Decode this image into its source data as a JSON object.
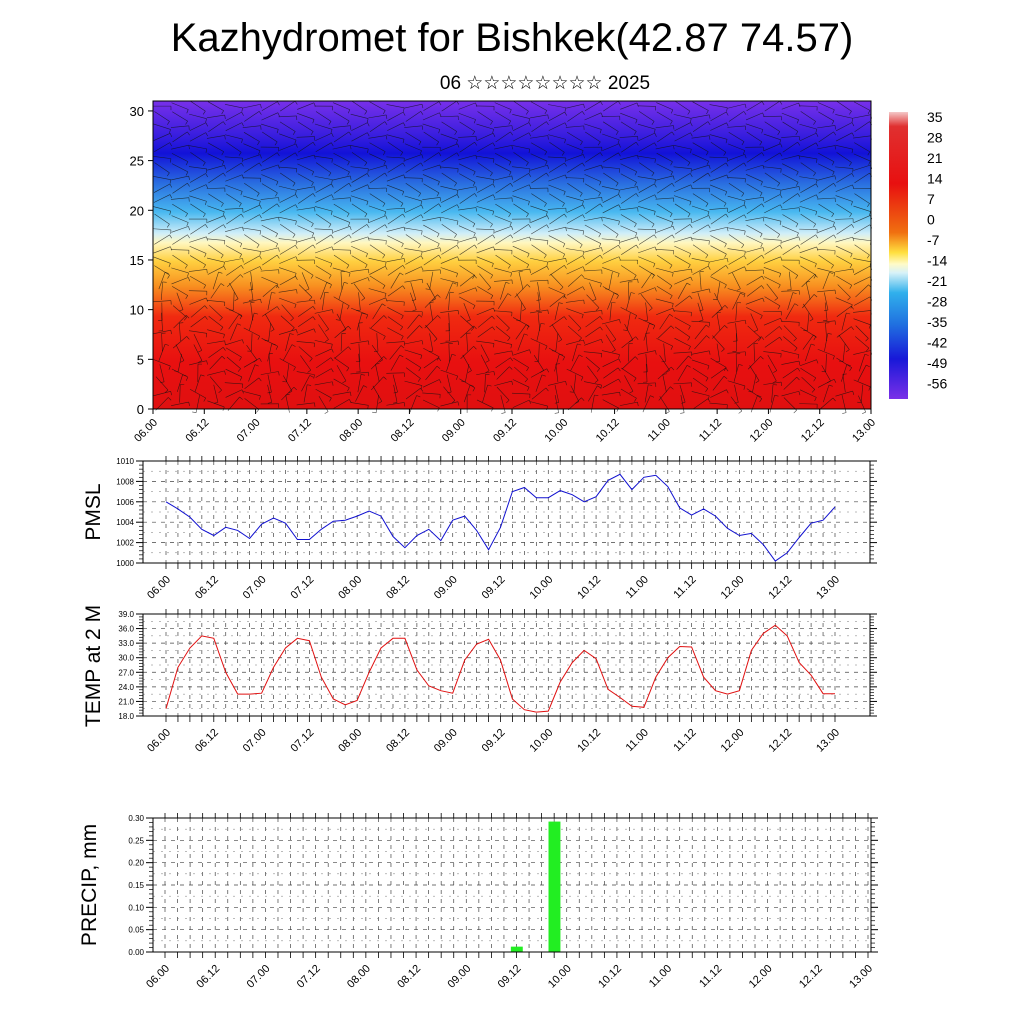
{
  "header": {
    "title": "Kazhydromet for Bishkek(42.87 74.57)",
    "subtitle": "06 ☆☆☆☆☆☆☆☆ 2025"
  },
  "chart_data": [
    {
      "type": "heatmap",
      "title": "",
      "x_ticks": [
        "06.00",
        "06.12",
        "07.00",
        "07.12",
        "08.00",
        "08.12",
        "09.00",
        "09.12",
        "10.00",
        "10.12",
        "11.00",
        "11.12",
        "12.00",
        "12.12",
        "13.00"
      ],
      "y_ticks": [
        0,
        5,
        10,
        15,
        20,
        25,
        30
      ],
      "ylim": [
        0,
        31
      ],
      "colorbar": {
        "labels": [
          35,
          28,
          21,
          14,
          7,
          0,
          -7,
          -14,
          -21,
          -28,
          -35,
          -42,
          -49,
          -56
        ],
        "range": [
          -60,
          38
        ]
      },
      "wind_barbs": true,
      "grid": false
    },
    {
      "type": "line",
      "ylabel": "PMSL",
      "color": "#1010d0",
      "x_ticks": [
        "06.00",
        "06.12",
        "07.00",
        "07.12",
        "08.00",
        "08.12",
        "09.00",
        "09.12",
        "10.00",
        "10.12",
        "11.00",
        "11.12",
        "12.00",
        "12.12",
        "13.00"
      ],
      "y_ticks": [
        1000,
        1002,
        1004,
        1006,
        1008,
        1010
      ],
      "ylim": [
        1000,
        1010
      ],
      "x_step_hours": 3,
      "values": [
        1006.0,
        1005.3,
        1004.5,
        1003.3,
        1002.7,
        1003.5,
        1003.2,
        1002.4,
        1003.8,
        1004.4,
        1003.9,
        1002.3,
        1002.3,
        1003.3,
        1004.1,
        1004.2,
        1004.6,
        1005.1,
        1004.6,
        1002.6,
        1001.5,
        1002.7,
        1003.3,
        1002.2,
        1004.2,
        1004.6,
        1003.2,
        1001.3,
        1003.5,
        1007.0,
        1007.4,
        1006.4,
        1006.4,
        1007.1,
        1006.7,
        1006.0,
        1006.5,
        1008.1,
        1008.7,
        1007.2,
        1008.4,
        1008.6,
        1007.5,
        1005.4,
        1004.7,
        1005.3,
        1004.6,
        1003.4,
        1002.7,
        1002.9,
        1001.8,
        1000.2,
        1001.0,
        1002.5,
        1003.9,
        1004.2,
        1005.5
      ],
      "grid": true
    },
    {
      "type": "line",
      "ylabel": "TEMP at 2 M",
      "color": "#e01010",
      "x_ticks": [
        "06.00",
        "06.12",
        "07.00",
        "07.12",
        "08.00",
        "08.12",
        "09.00",
        "09.12",
        "10.00",
        "10.12",
        "11.00",
        "11.12",
        "12.00",
        "12.12",
        "13.00"
      ],
      "y_ticks": [
        "18.0",
        "21.0",
        "24.0",
        "27.0",
        "30.0",
        "33.0",
        "36.0",
        "39.0"
      ],
      "ylim": [
        18,
        39
      ],
      "x_step_hours": 3,
      "values": [
        19.5,
        28.0,
        32.0,
        34.5,
        34.0,
        27.0,
        22.5,
        22.5,
        22.7,
        28.0,
        32.0,
        34.0,
        33.5,
        26.0,
        21.5,
        20.3,
        21.2,
        27.0,
        32.0,
        34.0,
        34.0,
        27.5,
        24.2,
        23.2,
        22.7,
        29.5,
        32.8,
        33.8,
        29.5,
        21.5,
        19.3,
        18.8,
        19.0,
        25.0,
        29.0,
        31.5,
        29.8,
        23.5,
        21.8,
        20.0,
        19.8,
        26.0,
        30.0,
        32.3,
        32.2,
        26.0,
        23.2,
        22.5,
        23.2,
        31.5,
        35.0,
        36.7,
        34.5,
        29.0,
        26.4,
        22.6,
        22.6
      ],
      "grid": true
    },
    {
      "type": "bar",
      "ylabel": "PRECIP, mm",
      "color": "#22ee22",
      "x_ticks": [
        "06.00",
        "06.12",
        "07.00",
        "07.12",
        "08.00",
        "08.12",
        "09.00",
        "09.12",
        "10.00",
        "10.12",
        "11.00",
        "11.12",
        "12.00",
        "12.12",
        "13.00"
      ],
      "y_ticks": [
        "0.00",
        "0.05",
        "0.10",
        "0.15",
        "0.20",
        "0.25",
        "0.30"
      ],
      "ylim": [
        0,
        0.3
      ],
      "bars": [
        {
          "hour": 84,
          "value": 0.012
        },
        {
          "hour": 93,
          "value": 0.292
        }
      ],
      "grid": true
    }
  ]
}
